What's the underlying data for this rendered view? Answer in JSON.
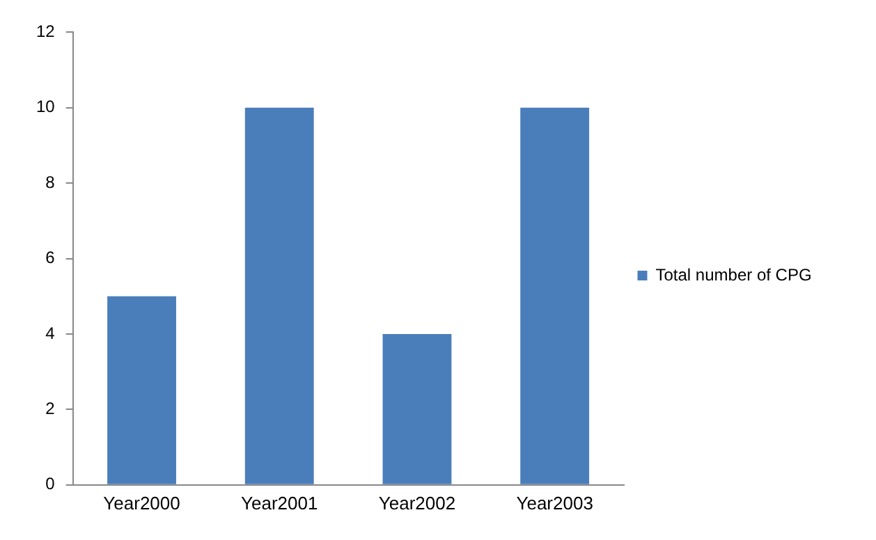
{
  "chart_data": {
    "type": "bar",
    "categories": [
      "Year2000",
      "Year2001",
      "Year2002",
      "Year2003"
    ],
    "series": [
      {
        "name": "Total number of CPG",
        "color": "#4a7ebb",
        "values": [
          5,
          10,
          4,
          10
        ]
      }
    ],
    "ylim": [
      0,
      12
    ],
    "yticks": [
      0,
      2,
      4,
      6,
      8,
      10,
      12
    ],
    "grid": false,
    "legend": "right"
  }
}
